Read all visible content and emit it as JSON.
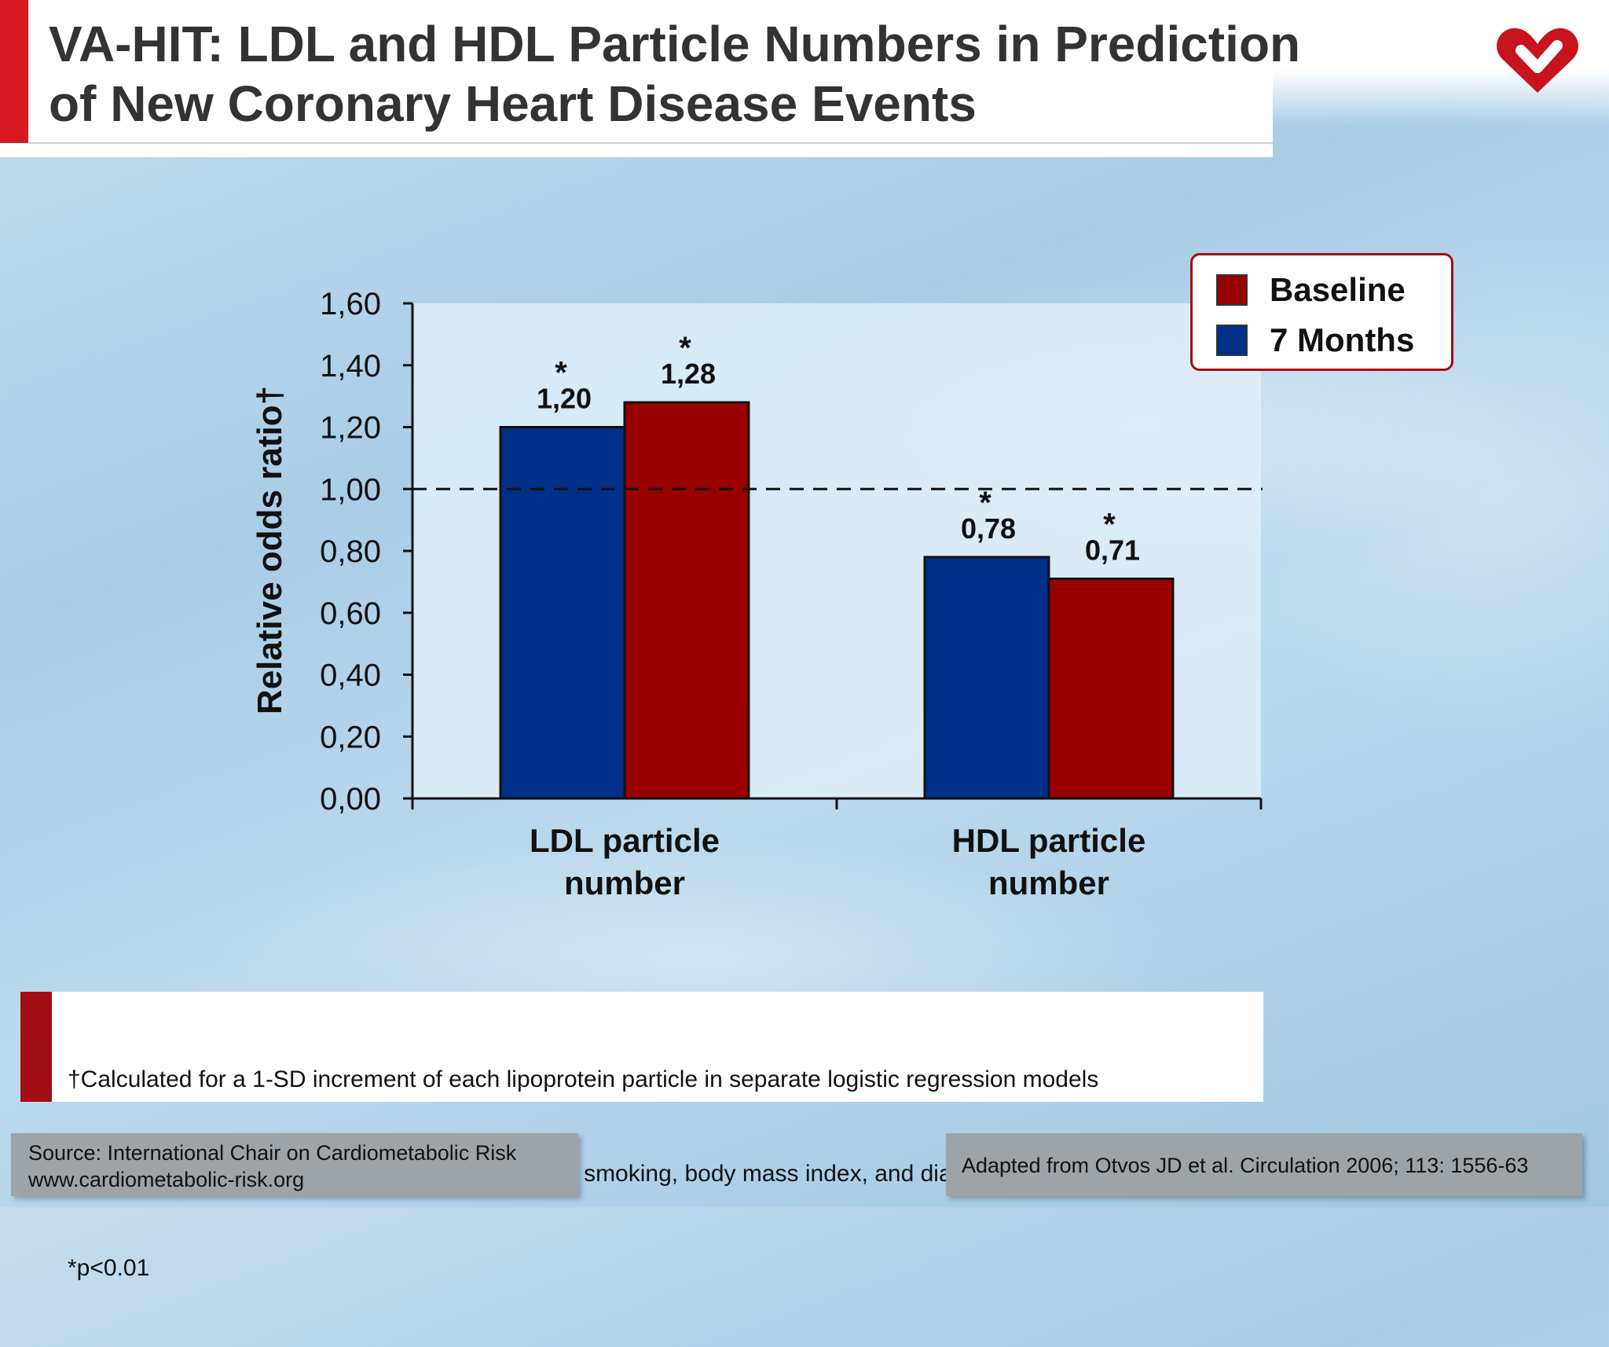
{
  "title_line1": "VA-HIT: LDL and HDL Particle Numbers in Prediction",
  "title_line2": "of New Coronary Heart Disease Events",
  "colors": {
    "baseline": "#990000",
    "months7": "#003087",
    "accent": "#d71920"
  },
  "chart_data": {
    "type": "bar",
    "categories": [
      [
        "LDL particle",
        "number"
      ],
      [
        "HDL particle",
        "number"
      ]
    ],
    "series": [
      {
        "name": "7 Months",
        "values": [
          1.2,
          0.78
        ],
        "labels": [
          "1,20",
          "0,78"
        ],
        "color": "#003087"
      },
      {
        "name": "Baseline",
        "values": [
          1.28,
          0.71
        ],
        "labels": [
          "1,28",
          "0,71"
        ],
        "color": "#990000"
      }
    ],
    "significance_marker": "*",
    "ylabel": "Relative odds ratio†",
    "ylim": [
      0,
      1.6
    ],
    "yticks": [
      "0,00",
      "0,20",
      "0,40",
      "0,60",
      "0,80",
      "1,00",
      "1,20",
      "1,40",
      "1,60"
    ],
    "reference_line": 1.0,
    "legend_position": "top-right",
    "legend": [
      "Baseline",
      "7 Months"
    ]
  },
  "footnote": {
    "line1": "†Calculated for a 1-SD increment of each lipoprotein particle in separate logistic regression models",
    "line2": " adjusted for treatment group, age, hypertension, smoking, body mass index, and diabetes",
    "line3": "*p<0.01"
  },
  "source": {
    "line1": "Source: International Chair on Cardiometabolic Risk",
    "line2": "www.cardiometabolic-risk.org"
  },
  "adapted": "Adapted from Otvos JD et al. Circulation 2006; 113: 1556-63"
}
